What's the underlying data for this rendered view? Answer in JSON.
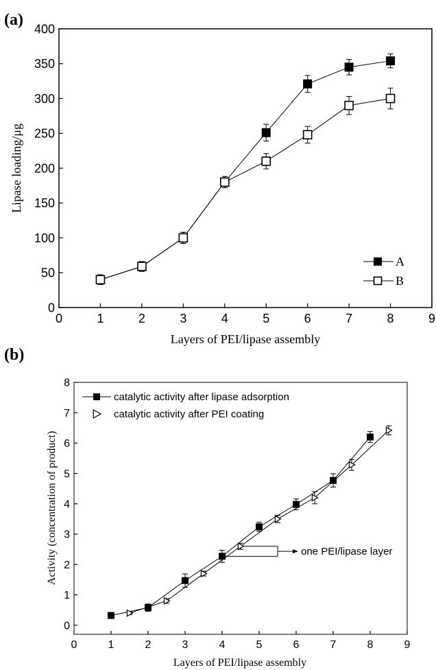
{
  "figure": {
    "panel_a_label": "(a)",
    "panel_b_label": "(b)"
  },
  "chart_data": [
    {
      "type": "line",
      "title": "",
      "xlabel": "Layers of PEI/lipase assembly",
      "ylabel": "Lipase loading/μg",
      "xlim": [
        0,
        9
      ],
      "ylim": [
        0,
        400
      ],
      "xticks": [
        0,
        1,
        2,
        3,
        4,
        5,
        6,
        7,
        8,
        9
      ],
      "yticks": [
        0,
        50,
        100,
        150,
        200,
        250,
        300,
        350,
        400
      ],
      "legend_position": "bottom-right",
      "grid": false,
      "series": [
        {
          "name": "A",
          "marker": "filled-square",
          "color": "#000000",
          "x": [
            1,
            2,
            3,
            4,
            5,
            6,
            7,
            8
          ],
          "y": [
            40,
            59,
            100,
            180,
            251,
            321,
            345,
            354
          ],
          "err": [
            7,
            7,
            8,
            8,
            12,
            12,
            11,
            10
          ]
        },
        {
          "name": "B",
          "marker": "open-square",
          "color": "#000000",
          "x": [
            1,
            2,
            3,
            4,
            5,
            6,
            7,
            8
          ],
          "y": [
            40,
            59,
            100,
            180,
            210,
            248,
            290,
            300
          ],
          "err": [
            7,
            7,
            8,
            8,
            11,
            12,
            13,
            15
          ]
        }
      ]
    },
    {
      "type": "line",
      "title": "",
      "xlabel": "Layers of PEI/lipase assembly",
      "ylabel": "Activity (concentration of product)",
      "xlim": [
        0,
        9
      ],
      "ylim": [
        -0.3,
        8
      ],
      "xticks": [
        0,
        1,
        2,
        3,
        4,
        5,
        6,
        7,
        8,
        9
      ],
      "yticks": [
        0,
        1,
        2,
        3,
        4,
        5,
        6,
        7,
        8
      ],
      "legend_position": "top-left",
      "grid": false,
      "series": [
        {
          "name": "catalytic activity after lipase adsorption",
          "marker": "filled-square",
          "color": "#000000",
          "x": [
            1,
            2,
            3,
            4,
            5,
            6,
            7,
            8
          ],
          "y": [
            0.32,
            0.58,
            1.47,
            2.27,
            3.24,
            3.98,
            4.77,
            6.2
          ],
          "err": [
            0.05,
            0.12,
            0.22,
            0.2,
            0.15,
            0.18,
            0.22,
            0.18
          ]
        },
        {
          "name": "catalytic activity after PEI coating",
          "marker": "open-triangle-right",
          "color": "#000000",
          "x": [
            1.5,
            2.5,
            3.5,
            4.5,
            5.5,
            6.5,
            7.5,
            8.5
          ],
          "y": [
            0.4,
            0.8,
            1.7,
            2.6,
            3.5,
            4.2,
            5.28,
            6.42
          ],
          "err": [
            0.05,
            0.08,
            0.08,
            0.1,
            0.12,
            0.2,
            0.18,
            0.15
          ]
        }
      ],
      "annotation": {
        "text": "one PEI/lipase layer",
        "x_from": 4,
        "x_to": 5.5,
        "y_low": 2.27,
        "y_high": 2.6
      }
    }
  ]
}
